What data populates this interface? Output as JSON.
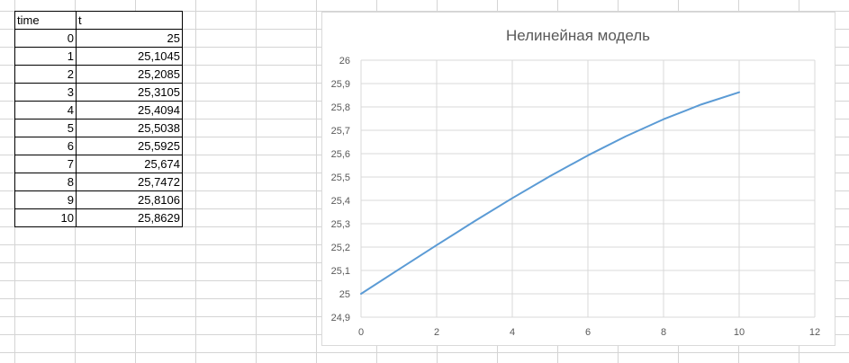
{
  "table": {
    "headers": [
      "time",
      "t"
    ],
    "rows": [
      [
        "0",
        "25"
      ],
      [
        "1",
        "25,1045"
      ],
      [
        "2",
        "25,2085"
      ],
      [
        "3",
        "25,3105"
      ],
      [
        "4",
        "25,4094"
      ],
      [
        "5",
        "25,5038"
      ],
      [
        "6",
        "25,5925"
      ],
      [
        "7",
        "25,674"
      ],
      [
        "8",
        "25,7472"
      ],
      [
        "9",
        "25,8106"
      ],
      [
        "10",
        "25,8629"
      ]
    ]
  },
  "chart_data": {
    "type": "line",
    "title": "Нелинейная модель",
    "xlabel": "",
    "ylabel": "",
    "x": [
      0,
      1,
      2,
      3,
      4,
      5,
      6,
      7,
      8,
      9,
      10
    ],
    "series": [
      {
        "values": [
          25,
          25.1045,
          25.2085,
          25.3105,
          25.4094,
          25.5038,
          25.5925,
          25.674,
          25.7472,
          25.8106,
          25.8629
        ]
      }
    ],
    "xlim": [
      0,
      12
    ],
    "ylim": [
      24.9,
      26
    ],
    "x_ticks": [
      0,
      2,
      4,
      6,
      8,
      10,
      12
    ],
    "x_tick_labels": [
      "0",
      "2",
      "4",
      "6",
      "8",
      "10",
      "12"
    ],
    "y_ticks": [
      24.9,
      25,
      25.1,
      25.2,
      25.3,
      25.4,
      25.5,
      25.6,
      25.7,
      25.8,
      25.9,
      26
    ],
    "y_tick_labels": [
      "24,9",
      "25",
      "25,1",
      "25,2",
      "25,3",
      "25,4",
      "25,5",
      "25,6",
      "25,7",
      "25,8",
      "25,9",
      "26"
    ],
    "grid": "both",
    "legend": "none",
    "colors": {
      "line": "#5b9bd5",
      "grid": "#d9d9d9",
      "text": "#595959"
    }
  }
}
